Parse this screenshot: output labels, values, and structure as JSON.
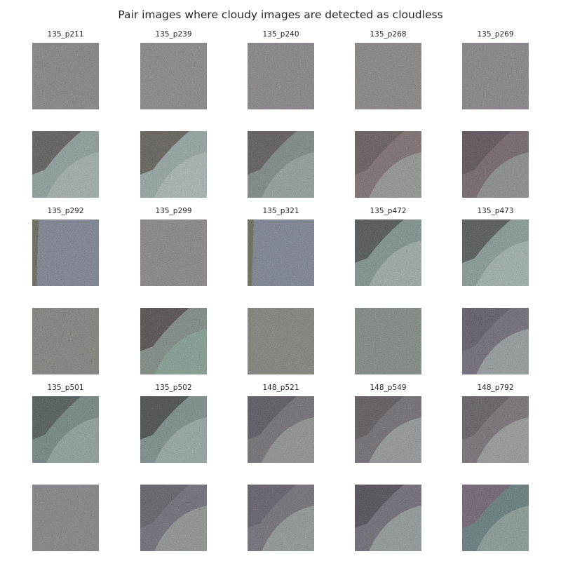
{
  "title": "Pair images where cloudy images are detected as cloudless",
  "pairs": [
    {
      "id": "135_p211",
      "top": {
        "kind": "noise",
        "base": "#8a7e8f",
        "accent": "#7f9a6f",
        "edge": ""
      },
      "bottom": {
        "kind": "scene",
        "base": "#8fa5a2",
        "shadow": "#4c4644",
        "light": "#b7c6c2"
      }
    },
    {
      "id": "135_p239",
      "top": {
        "kind": "noise",
        "base": "#8d8290",
        "accent": "#86a07c",
        "edge": ""
      },
      "bottom": {
        "kind": "scene",
        "base": "#9aaeaa",
        "shadow": "#51463f",
        "light": "#c1cfcb"
      }
    },
    {
      "id": "135_p240",
      "top": {
        "kind": "noise",
        "base": "#8c7d90",
        "accent": "#85a07a",
        "edge": ""
      },
      "bottom": {
        "kind": "scene",
        "base": "#7a8a88",
        "shadow": "#4f4649",
        "light": "#a7b8b3"
      }
    },
    {
      "id": "135_p268",
      "top": {
        "kind": "noise",
        "base": "#8d8088",
        "accent": "#84a07d",
        "edge": ""
      },
      "bottom": {
        "kind": "scene",
        "base": "#7c6a6c",
        "shadow": "#5b4d4e",
        "light": "#a9bab3"
      }
    },
    {
      "id": "135_p269",
      "top": {
        "kind": "noise",
        "base": "#8b7d8e",
        "accent": "#82a17d",
        "edge": ""
      },
      "bottom": {
        "kind": "scene",
        "base": "#6f5e66",
        "shadow": "#4f4349",
        "light": "#9fb2ad"
      }
    },
    {
      "id": "135_p292",
      "top": {
        "kind": "noise",
        "base": "#7d7d9e",
        "accent": "#7e967a",
        "edge": "#59523e"
      },
      "bottom": {
        "kind": "noise",
        "base": "#827a7c",
        "accent": "#82a076",
        "edge": ""
      }
    },
    {
      "id": "135_p299",
      "top": {
        "kind": "noise",
        "base": "#8b8190",
        "accent": "#8d9d78",
        "edge": ""
      },
      "bottom": {
        "kind": "scene",
        "base": "#7f8d84",
        "shadow": "#3f3433",
        "light": "#88b79f"
      }
    },
    {
      "id": "135_p321",
      "top": {
        "kind": "noise",
        "base": "#7b7c9d",
        "accent": "#7d987b",
        "edge": "#5d573f"
      },
      "bottom": {
        "kind": "noise",
        "base": "#807a7a",
        "accent": "#84a17b",
        "edge": ""
      }
    },
    {
      "id": "135_p472",
      "top": {
        "kind": "scene",
        "base": "#7f9692",
        "shadow": "#3a3d3d",
        "light": "#b7c7c3"
      },
      "bottom": {
        "kind": "noise",
        "base": "#888282",
        "accent": "#6ba88a",
        "edge": ""
      }
    },
    {
      "id": "135_p473",
      "top": {
        "kind": "scene",
        "base": "#88a09c",
        "shadow": "#3d403f",
        "light": "#bdcdc9"
      },
      "bottom": {
        "kind": "scene",
        "base": "#6c6676",
        "shadow": "#564f5f",
        "light": "#b9cbc4"
      }
    },
    {
      "id": "135_p501",
      "top": {
        "kind": "scene",
        "base": "#6f8682",
        "shadow": "#3e4646",
        "light": "#a7bcb7"
      },
      "bottom": {
        "kind": "noise",
        "base": "#827e8e",
        "accent": "#859a7c",
        "edge": ""
      }
    },
    {
      "id": "135_p502",
      "top": {
        "kind": "scene",
        "base": "#77908c",
        "shadow": "#2f3433",
        "light": "#b0c4bf"
      },
      "bottom": {
        "kind": "scene",
        "base": "#6a6775",
        "shadow": "#57545e",
        "light": "#aebaa9"
      }
    },
    {
      "id": "148_p521",
      "top": {
        "kind": "scene",
        "base": "#706872",
        "shadow": "#4f4852",
        "light": "#aab4ad"
      },
      "bottom": {
        "kind": "scene",
        "base": "#6f6a74",
        "shadow": "#585060",
        "light": "#aebfb5"
      }
    },
    {
      "id": "148_p549",
      "top": {
        "kind": "scene",
        "base": "#6e6670",
        "shadow": "#534b53",
        "light": "#b3c1bb"
      },
      "bottom": {
        "kind": "scene",
        "base": "#6a6572",
        "shadow": "#3f3a45",
        "light": "#b3c6bd"
      }
    },
    {
      "id": "148_p792",
      "top": {
        "kind": "scene",
        "base": "#746c74",
        "shadow": "#59515a",
        "light": "#b5c1bb"
      },
      "bottom": {
        "kind": "scene",
        "base": "#5f7b7a",
        "shadow": "#6e566d",
        "light": "#a9b9b3"
      }
    }
  ]
}
